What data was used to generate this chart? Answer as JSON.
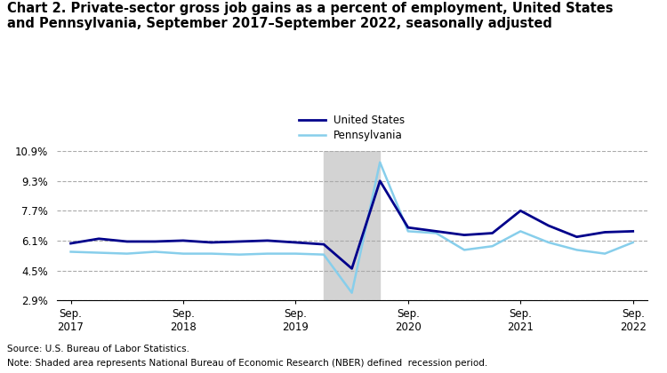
{
  "title_line1": "Chart 2. Private-sector gross job gains as a percent of employment, United States",
  "title_line2": "and Pennsylvania, September 2017–September 2022, seasonally adjusted",
  "title_fontsize": 10.5,
  "us_label": "United States",
  "pa_label": "Pennsylvania",
  "source_text": "Source: U.S. Bureau of Labor Statistics.",
  "note_text": "Note: Shaded area represents National Bureau of Economic Research (NBER) defined  recession period.",
  "us_color": "#00008B",
  "pa_color": "#87CEEB",
  "recession_color": "#D3D3D3",
  "recession_start": 9,
  "recession_end": 11,
  "ylim": [
    2.9,
    10.9
  ],
  "yticks": [
    2.9,
    4.5,
    6.1,
    7.7,
    9.3,
    10.9
  ],
  "xtick_labels": [
    "Sep.\n2017",
    "Sep.\n2018",
    "Sep.\n2019",
    "Sep.\n2020",
    "Sep.\n2021",
    "Sep.\n2022"
  ],
  "xtick_positions": [
    0,
    4,
    8,
    12,
    16,
    20
  ],
  "us_data": [
    5.95,
    6.2,
    6.05,
    6.05,
    6.1,
    6.0,
    6.05,
    6.1,
    6.0,
    5.9,
    4.6,
    9.3,
    6.8,
    6.6,
    6.4,
    6.5,
    7.7,
    6.9,
    6.3,
    6.55,
    6.6
  ],
  "pa_data": [
    5.5,
    5.45,
    5.4,
    5.5,
    5.4,
    5.4,
    5.35,
    5.4,
    5.4,
    5.35,
    3.3,
    10.3,
    6.6,
    6.5,
    5.6,
    5.8,
    6.6,
    6.0,
    5.6,
    5.4,
    6.0
  ],
  "background_color": "#FFFFFF",
  "grid_color": "#AAAAAA"
}
